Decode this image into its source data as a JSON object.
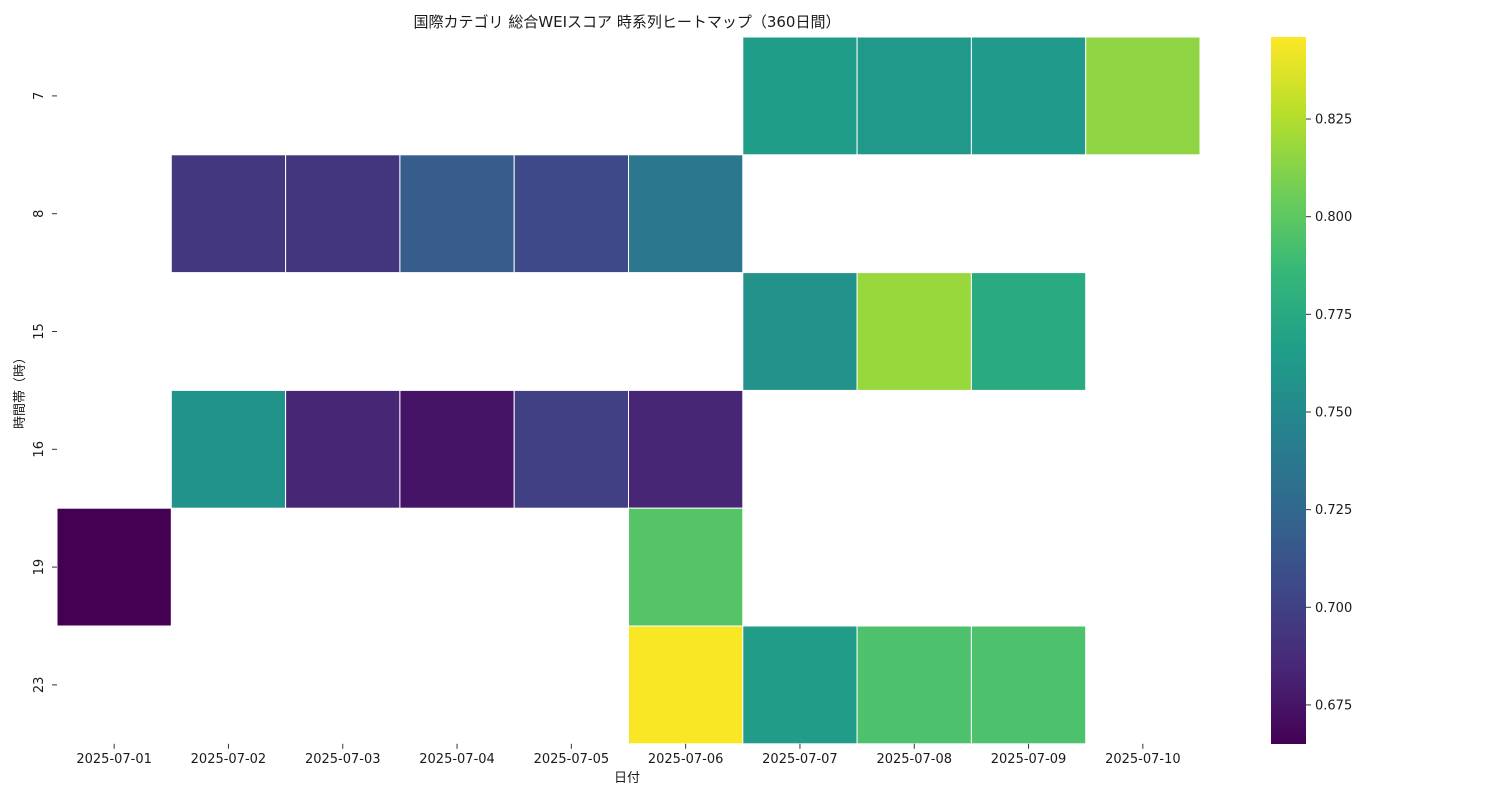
{
  "chart_data": {
    "type": "heatmap",
    "title": "国際カテゴリ 総合WEIスコア 時系列ヒートマップ（360日間）",
    "xlabel": "日付",
    "ylabel": "時間帯（時）",
    "categories": [
      "2025-07-01",
      "2025-07-02",
      "2025-07-03",
      "2025-07-04",
      "2025-07-05",
      "2025-07-06",
      "2025-07-07",
      "2025-07-08",
      "2025-07-09",
      "2025-07-10"
    ],
    "rows": [
      "7",
      "8",
      "15",
      "16",
      "19",
      "23"
    ],
    "values": [
      [
        null,
        null,
        null,
        null,
        null,
        null,
        0.765,
        0.762,
        0.763,
        0.815
      ],
      [
        null,
        0.695,
        0.693,
        0.718,
        0.705,
        0.737,
        null,
        null,
        null,
        null
      ],
      [
        null,
        null,
        null,
        null,
        null,
        null,
        0.757,
        0.818,
        0.775,
        null
      ],
      [
        null,
        0.758,
        0.684,
        0.675,
        0.7,
        0.684,
        null,
        null,
        null,
        null
      ],
      [
        0.665,
        null,
        null,
        null,
        null,
        0.797,
        null,
        null,
        null,
        null
      ],
      [
        null,
        null,
        null,
        null,
        null,
        0.845,
        0.764,
        0.794,
        0.794,
        null
      ]
    ],
    "colorbar": {
      "colormap": "viridis",
      "range": [
        0.665,
        0.846
      ],
      "ticks": [
        0.675,
        0.7,
        0.725,
        0.75,
        0.775,
        0.8,
        0.825
      ],
      "tick_labels": [
        "0.675",
        "0.700",
        "0.725",
        "0.750",
        "0.775",
        "0.800",
        "0.825"
      ]
    }
  }
}
